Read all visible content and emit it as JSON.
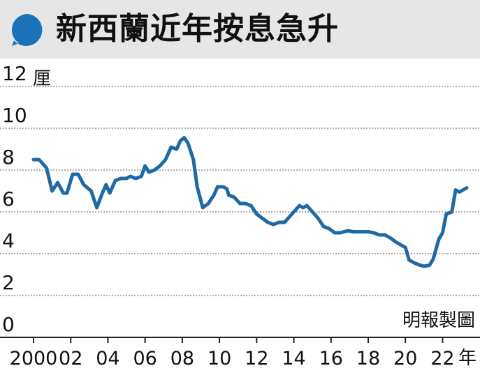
{
  "title": "新西蘭近年按息急升",
  "source_note": "明報製圖",
  "colors": {
    "line": "#1f6aa5",
    "badge": "#1a73b8",
    "title_bg": "#e6e6e6",
    "grid": "#888888"
  },
  "chart_data": {
    "type": "line",
    "title": "新西蘭近年按息急升",
    "ylabel": "厘",
    "xlabel": "年",
    "xlim": [
      2000,
      2023.6
    ],
    "ylim": [
      0,
      12
    ],
    "yticks": [
      {
        "value": 0,
        "label": "0"
      },
      {
        "value": 2,
        "label": "2"
      },
      {
        "value": 4,
        "label": "4"
      },
      {
        "value": 6,
        "label": "6"
      },
      {
        "value": 8,
        "label": "8"
      },
      {
        "value": 10,
        "label": "10"
      },
      {
        "value": 12,
        "label": "12"
      }
    ],
    "xticks": [
      {
        "value": 2000,
        "label": "2000"
      },
      {
        "value": 2002,
        "label": "02"
      },
      {
        "value": 2004,
        "label": "04"
      },
      {
        "value": 2006,
        "label": "06"
      },
      {
        "value": 2008,
        "label": "08"
      },
      {
        "value": 2010,
        "label": "10"
      },
      {
        "value": 2012,
        "label": "12"
      },
      {
        "value": 2014,
        "label": "14"
      },
      {
        "value": 2016,
        "label": "16"
      },
      {
        "value": 2018,
        "label": "18"
      },
      {
        "value": 2020,
        "label": "20"
      },
      {
        "value": 2022,
        "label": "22"
      }
    ],
    "grid": true,
    "series": [
      {
        "points": [
          [
            2000.0,
            8.5
          ],
          [
            2000.3,
            8.5
          ],
          [
            2000.7,
            8.1
          ],
          [
            2001.0,
            7.0
          ],
          [
            2001.3,
            7.4
          ],
          [
            2001.6,
            6.9
          ],
          [
            2001.8,
            6.9
          ],
          [
            2002.1,
            7.8
          ],
          [
            2002.4,
            7.8
          ],
          [
            2002.7,
            7.3
          ],
          [
            2003.1,
            7.0
          ],
          [
            2003.4,
            6.2
          ],
          [
            2003.7,
            6.9
          ],
          [
            2003.9,
            7.3
          ],
          [
            2004.1,
            6.9
          ],
          [
            2004.4,
            7.5
          ],
          [
            2004.7,
            7.6
          ],
          [
            2005.0,
            7.6
          ],
          [
            2005.2,
            7.7
          ],
          [
            2005.5,
            7.6
          ],
          [
            2005.8,
            7.7
          ],
          [
            2006.0,
            8.2
          ],
          [
            2006.2,
            7.9
          ],
          [
            2006.5,
            8.0
          ],
          [
            2006.8,
            8.2
          ],
          [
            2007.1,
            8.5
          ],
          [
            2007.4,
            9.1
          ],
          [
            2007.7,
            9.0
          ],
          [
            2007.9,
            9.4
          ],
          [
            2008.1,
            9.55
          ],
          [
            2008.3,
            9.3
          ],
          [
            2008.6,
            8.5
          ],
          [
            2008.8,
            7.2
          ],
          [
            2009.1,
            6.2
          ],
          [
            2009.4,
            6.4
          ],
          [
            2009.7,
            6.8
          ],
          [
            2009.9,
            7.2
          ],
          [
            2010.2,
            7.2
          ],
          [
            2010.4,
            7.1
          ],
          [
            2010.5,
            6.8
          ],
          [
            2010.8,
            6.7
          ],
          [
            2011.1,
            6.4
          ],
          [
            2011.4,
            6.4
          ],
          [
            2011.7,
            6.3
          ],
          [
            2012.0,
            5.9
          ],
          [
            2012.3,
            5.7
          ],
          [
            2012.6,
            5.5
          ],
          [
            2012.9,
            5.4
          ],
          [
            2013.2,
            5.5
          ],
          [
            2013.5,
            5.5
          ],
          [
            2013.8,
            5.8
          ],
          [
            2014.1,
            6.1
          ],
          [
            2014.3,
            6.3
          ],
          [
            2014.5,
            6.2
          ],
          [
            2014.7,
            6.3
          ],
          [
            2015.0,
            6.0
          ],
          [
            2015.3,
            5.7
          ],
          [
            2015.6,
            5.3
          ],
          [
            2015.9,
            5.2
          ],
          [
            2016.2,
            5.0
          ],
          [
            2016.5,
            5.0
          ],
          [
            2016.9,
            5.1
          ],
          [
            2017.2,
            5.05
          ],
          [
            2017.6,
            5.05
          ],
          [
            2018.0,
            5.05
          ],
          [
            2018.3,
            5.0
          ],
          [
            2018.6,
            4.9
          ],
          [
            2018.9,
            4.9
          ],
          [
            2019.2,
            4.75
          ],
          [
            2019.5,
            4.55
          ],
          [
            2019.8,
            4.4
          ],
          [
            2020.0,
            4.3
          ],
          [
            2020.2,
            3.7
          ],
          [
            2020.5,
            3.55
          ],
          [
            2020.8,
            3.45
          ],
          [
            2021.0,
            3.4
          ],
          [
            2021.3,
            3.45
          ],
          [
            2021.5,
            3.75
          ],
          [
            2021.8,
            4.7
          ],
          [
            2022.0,
            5.0
          ],
          [
            2022.2,
            5.9
          ],
          [
            2022.5,
            6.0
          ],
          [
            2022.7,
            7.05
          ],
          [
            2022.9,
            6.95
          ],
          [
            2023.2,
            7.1
          ],
          [
            2023.3,
            7.15
          ]
        ]
      }
    ]
  }
}
